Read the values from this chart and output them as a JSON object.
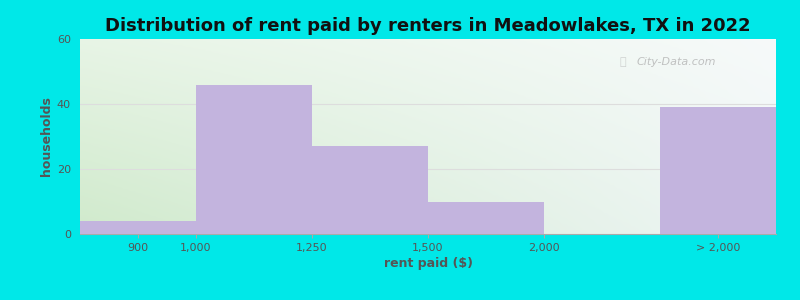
{
  "title": "Distribution of rent paid by renters in Meadowlakes, TX in 2022",
  "xlabel": "rent paid ($)",
  "ylabel": "households",
  "bar_heights": [
    4,
    46,
    27,
    10,
    39
  ],
  "bar_color": "#c3b4de",
  "bar_edge_color": "#c3b4de",
  "ylim": [
    0,
    60
  ],
  "yticks": [
    0,
    20,
    40,
    60
  ],
  "background_outer": "#00e8e8",
  "bg_colors": [
    "#d0eacc",
    "#eef5f5"
  ],
  "title_fontsize": 13,
  "axis_label_fontsize": 9,
  "watermark": "City-Data.com",
  "tick_labels": [
    "900",
    "1,000",
    "1,250",
    "1,500",
    "2,000",
    "> 2,000"
  ],
  "grid_color": "#dddddd",
  "text_color": "#555555"
}
